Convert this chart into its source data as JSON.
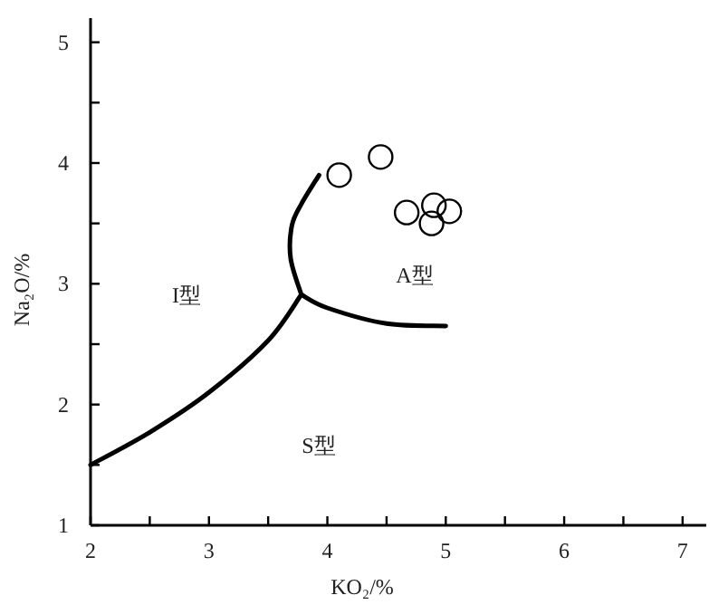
{
  "chart_data": {
    "type": "line",
    "xlabel": "KO₂/%",
    "ylabel": "Na₂O/%",
    "xlim": [
      2,
      7.2
    ],
    "ylim": [
      1,
      5.2
    ],
    "xticks": [
      2,
      {
        "value": 2.5,
        "label": null
      },
      3,
      {
        "value": 3.5,
        "label": null
      },
      4,
      {
        "value": 4.5,
        "label": null
      },
      5,
      {
        "value": 5.5,
        "label": null
      },
      6,
      {
        "value": 6.5,
        "label": null
      },
      7
    ],
    "yticks": [
      1,
      {
        "value": 1.5,
        "label": null
      },
      2,
      {
        "value": 2.5,
        "label": null
      },
      3,
      {
        "value": 3.5,
        "label": null
      },
      4,
      {
        "value": 4.5,
        "label": null
      },
      5
    ],
    "line_style": "solid",
    "series": [
      {
        "color": "#000000",
        "x": [
          2,
          2.5,
          3,
          3.5,
          3.78
        ],
        "values": [
          1.5,
          1.77,
          2.1,
          2.53,
          2.91
        ]
      },
      {
        "color": "#000000",
        "x": [
          3.78,
          4,
          4.5,
          5
        ],
        "values": [
          2.91,
          2.8,
          2.67,
          2.65
        ]
      },
      {
        "color": "#000000",
        "x": [
          3.78,
          3.69,
          3.7,
          3.78,
          3.93
        ],
        "values": [
          2.91,
          3.21,
          3.48,
          3.66,
          3.9
        ]
      },
      {
        "type": "scatter",
        "marker": "circle",
        "color": "#000000",
        "x": [
          4.1,
          4.45,
          4.67,
          4.9,
          4.88,
          5.03
        ],
        "values": [
          3.9,
          4.05,
          3.59,
          3.65,
          3.5,
          3.6
        ]
      }
    ],
    "annotations": [
      "I型",
      "A型",
      "S型"
    ]
  }
}
